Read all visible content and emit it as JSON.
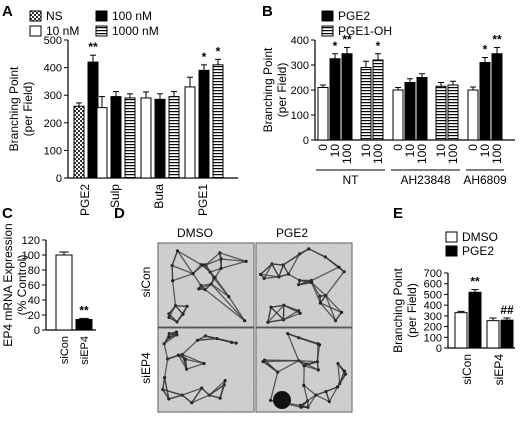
{
  "panels": {
    "A": {
      "letter": "A"
    },
    "B": {
      "letter": "B"
    },
    "C": {
      "letter": "C"
    },
    "D": {
      "letter": "D",
      "col_labels": [
        "DMSO",
        "PGE2"
      ],
      "row_labels": [
        "siCon",
        "siEP4"
      ]
    },
    "E": {
      "letter": "E"
    }
  },
  "colors": {
    "black": "#000000",
    "white": "#ffffff",
    "gray": "#9a9a9a",
    "micro_bg": "#d2d2d2"
  },
  "chart_data": [
    {
      "panel": "A",
      "type": "bar",
      "ylabel": "Branching Point\n(per Field)",
      "ylim": [
        0,
        500
      ],
      "yticks": [
        0,
        100,
        200,
        300,
        400,
        500
      ],
      "legend": [
        {
          "name": "NS",
          "pattern": "checker"
        },
        {
          "name": "100 nM",
          "pattern": "black"
        },
        {
          "name": "10 nM",
          "pattern": "white"
        },
        {
          "name": "1000 nM",
          "pattern": "hstripe"
        }
      ],
      "groups": [
        {
          "name": "PGE2",
          "bars": [
            {
              "series": "NS",
              "value": 260,
              "err": 12
            },
            {
              "series": "100 nM",
              "value": 420,
              "err": 25,
              "sig": "**"
            }
          ]
        },
        {
          "name": "Sulp",
          "bars": [
            {
              "series": "10 nM",
              "value": 255,
              "err": 40
            },
            {
              "series": "100 nM",
              "value": 295,
              "err": 18
            },
            {
              "series": "1000 nM",
              "value": 290,
              "err": 15
            }
          ]
        },
        {
          "name": "Buta",
          "bars": [
            {
              "series": "10 nM",
              "value": 290,
              "err": 22
            },
            {
              "series": "100 nM",
              "value": 285,
              "err": 20
            },
            {
              "series": "1000 nM",
              "value": 295,
              "err": 18
            }
          ]
        },
        {
          "name": "PGE1",
          "bars": [
            {
              "series": "10 nM",
              "value": 330,
              "err": 35
            },
            {
              "series": "100 nM",
              "value": 390,
              "err": 20,
              "sig": "*"
            },
            {
              "series": "1000 nM",
              "value": 410,
              "err": 20,
              "sig": "*"
            }
          ]
        }
      ]
    },
    {
      "panel": "B",
      "type": "bar",
      "ylabel": "Branching Point\n(per Field)",
      "ylim": [
        0,
        400
      ],
      "yticks": [
        0,
        100,
        200,
        300,
        400
      ],
      "legend": [
        {
          "name": "PGE2",
          "pattern": "black"
        },
        {
          "name": "PGE1-OH",
          "pattern": "hstripe"
        }
      ],
      "groups": [
        {
          "name": "NT",
          "bars": [
            {
              "series": "PGE2",
              "value": 210,
              "err": 10,
              "tick": "0"
            },
            {
              "series": "PGE2",
              "value": 325,
              "err": 20,
              "tick": "10",
              "sig": "*"
            },
            {
              "series": "PGE2",
              "value": 345,
              "err": 25,
              "tick": "100",
              "sig": "**"
            },
            {
              "series": "PGE1-OH",
              "value": 290,
              "err": 25,
              "tick": "10"
            },
            {
              "series": "PGE1-OH",
              "value": 320,
              "err": 25,
              "tick": "100",
              "sig": "*"
            }
          ]
        },
        {
          "name": "AH23848",
          "bars": [
            {
              "series": "PGE2",
              "value": 200,
              "err": 10,
              "tick": "0"
            },
            {
              "series": "PGE2",
              "value": 230,
              "err": 15,
              "tick": "10"
            },
            {
              "series": "PGE2",
              "value": 250,
              "err": 15,
              "tick": "100"
            },
            {
              "series": "PGE1-OH",
              "value": 215,
              "err": 15,
              "tick": "10"
            },
            {
              "series": "PGE1-OH",
              "value": 220,
              "err": 15,
              "tick": "100"
            }
          ]
        },
        {
          "name": "AH6809",
          "bars": [
            {
              "series": "PGE2",
              "value": 200,
              "err": 12,
              "tick": "0"
            },
            {
              "series": "PGE2",
              "value": 310,
              "err": 20,
              "tick": "10",
              "sig": "*"
            },
            {
              "series": "PGE2",
              "value": 345,
              "err": 25,
              "tick": "100",
              "sig": "**"
            }
          ]
        }
      ]
    },
    {
      "panel": "C",
      "type": "bar",
      "ylabel": "EP4 mRNA Expression\n(% Control)",
      "ylim": [
        0,
        120
      ],
      "yticks": [
        0,
        20,
        40,
        60,
        80,
        100,
        120
      ],
      "categories": [
        "siCon",
        "siEP4"
      ],
      "bars": [
        {
          "category": "siCon",
          "value": 100,
          "err": 4,
          "fill": "white"
        },
        {
          "category": "siEP4",
          "value": 14,
          "err": 1.5,
          "fill": "black",
          "sig": "**"
        }
      ]
    },
    {
      "panel": "E",
      "type": "bar",
      "ylabel": "Branching Point\n(per Field)",
      "ylim": [
        0,
        700
      ],
      "yticks": [
        0,
        100,
        200,
        300,
        400,
        500,
        600,
        700
      ],
      "legend": [
        {
          "name": "DMSO",
          "pattern": "white"
        },
        {
          "name": "PGE2",
          "pattern": "black"
        }
      ],
      "groups": [
        {
          "name": "siCon",
          "bars": [
            {
              "series": "DMSO",
              "value": 330,
              "err": 12
            },
            {
              "series": "PGE2",
              "value": 520,
              "err": 25,
              "sig": "**"
            }
          ]
        },
        {
          "name": "siEP4",
          "bars": [
            {
              "series": "DMSO",
              "value": 255,
              "err": 25
            },
            {
              "series": "PGE2",
              "value": 260,
              "err": 20,
              "sig": "##"
            }
          ]
        }
      ]
    }
  ]
}
